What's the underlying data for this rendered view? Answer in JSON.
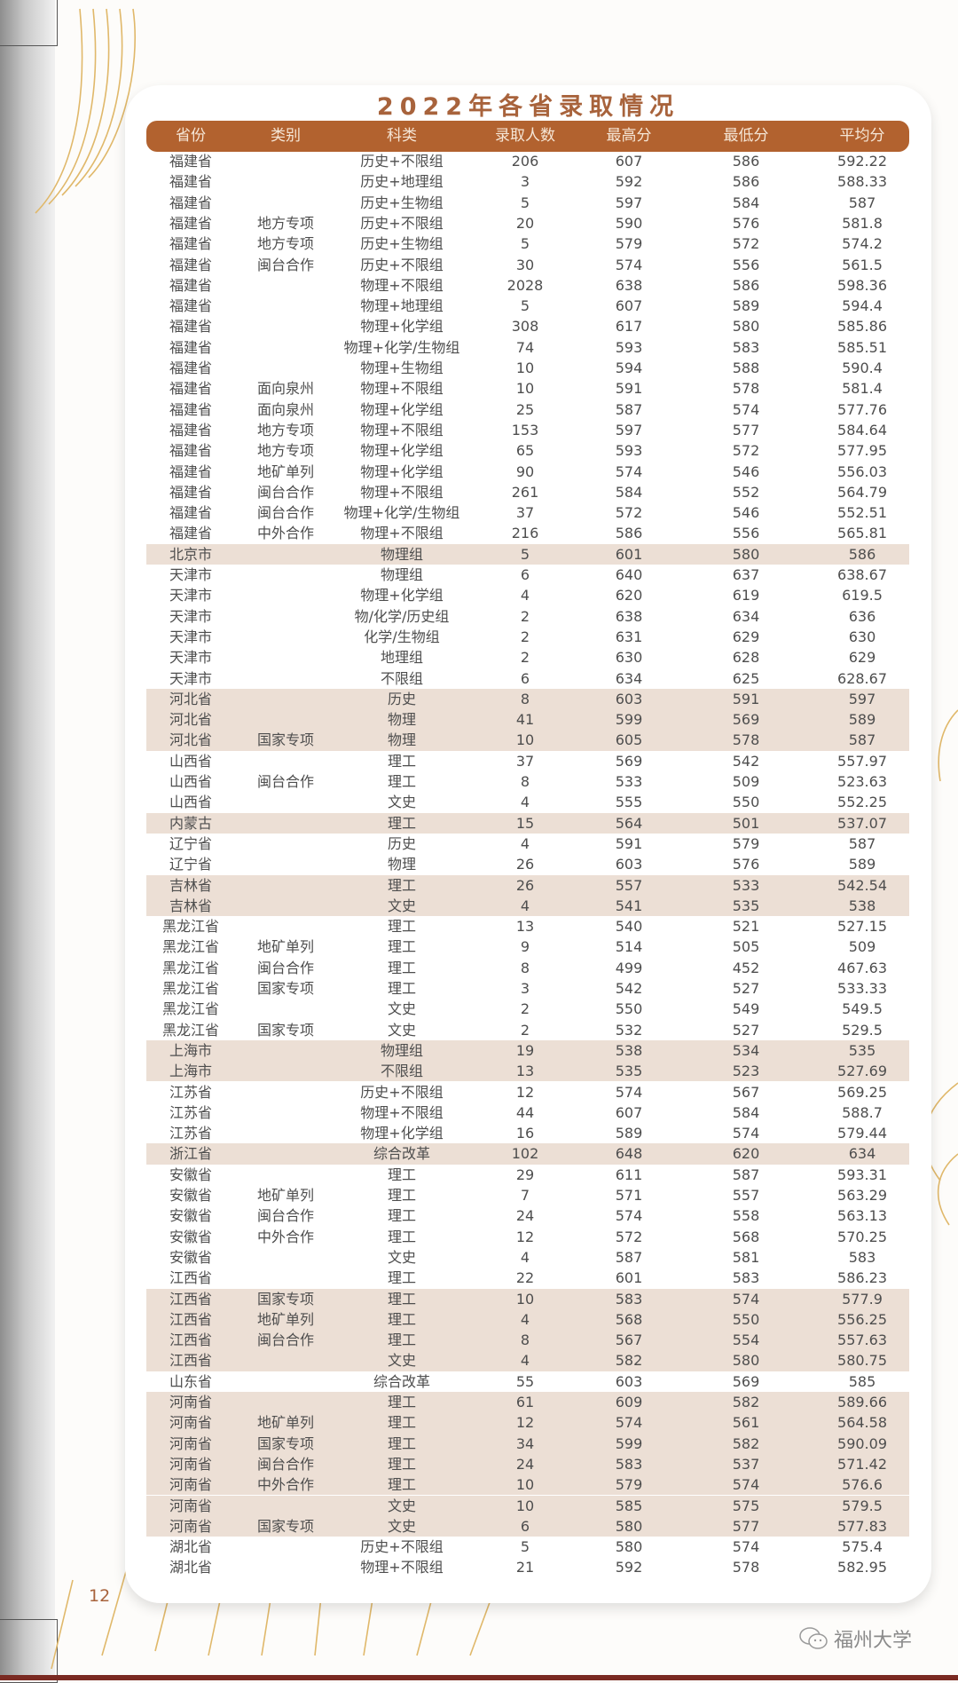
{
  "title": "2022年各省录取情况",
  "colors": {
    "accent": "#b2622f",
    "row_highlight": "#ecdfd5",
    "title": "#a8633c"
  },
  "columns": [
    "省份",
    "类别",
    "科类",
    "录取人数",
    "最高分",
    "最低分",
    "平均分"
  ],
  "rows": [
    {
      "highlight": false,
      "cells": [
        "福建省",
        "",
        "历史+不限组",
        "206",
        "607",
        "586",
        "592.22"
      ]
    },
    {
      "highlight": false,
      "cells": [
        "福建省",
        "",
        "历史+地理组",
        "3",
        "592",
        "586",
        "588.33"
      ]
    },
    {
      "highlight": false,
      "cells": [
        "福建省",
        "",
        "历史+生物组",
        "5",
        "597",
        "584",
        "587"
      ]
    },
    {
      "highlight": false,
      "cells": [
        "福建省",
        "地方专项",
        "历史+不限组",
        "20",
        "590",
        "576",
        "581.8"
      ]
    },
    {
      "highlight": false,
      "cells": [
        "福建省",
        "地方专项",
        "历史+生物组",
        "5",
        "579",
        "572",
        "574.2"
      ]
    },
    {
      "highlight": false,
      "cells": [
        "福建省",
        "闽台合作",
        "历史+不限组",
        "30",
        "574",
        "556",
        "561.5"
      ]
    },
    {
      "highlight": false,
      "cells": [
        "福建省",
        "",
        "物理+不限组",
        "2028",
        "638",
        "586",
        "598.36"
      ]
    },
    {
      "highlight": false,
      "cells": [
        "福建省",
        "",
        "物理+地理组",
        "5",
        "607",
        "589",
        "594.4"
      ]
    },
    {
      "highlight": false,
      "cells": [
        "福建省",
        "",
        "物理+化学组",
        "308",
        "617",
        "580",
        "585.86"
      ]
    },
    {
      "highlight": false,
      "cells": [
        "福建省",
        "",
        "物理+化学/生物组",
        "74",
        "593",
        "583",
        "585.51"
      ]
    },
    {
      "highlight": false,
      "cells": [
        "福建省",
        "",
        "物理+生物组",
        "10",
        "594",
        "588",
        "590.4"
      ]
    },
    {
      "highlight": false,
      "cells": [
        "福建省",
        "面向泉州",
        "物理+不限组",
        "10",
        "591",
        "578",
        "581.4"
      ]
    },
    {
      "highlight": false,
      "cells": [
        "福建省",
        "面向泉州",
        "物理+化学组",
        "25",
        "587",
        "574",
        "577.76"
      ]
    },
    {
      "highlight": false,
      "cells": [
        "福建省",
        "地方专项",
        "物理+不限组",
        "153",
        "597",
        "577",
        "584.64"
      ]
    },
    {
      "highlight": false,
      "cells": [
        "福建省",
        "地方专项",
        "物理+化学组",
        "65",
        "593",
        "572",
        "577.95"
      ]
    },
    {
      "highlight": false,
      "cells": [
        "福建省",
        "地矿单列",
        "物理+化学组",
        "90",
        "574",
        "546",
        "556.03"
      ]
    },
    {
      "highlight": false,
      "cells": [
        "福建省",
        "闽台合作",
        "物理+不限组",
        "261",
        "584",
        "552",
        "564.79"
      ]
    },
    {
      "highlight": false,
      "cells": [
        "福建省",
        "闽台合作",
        "物理+化学/生物组",
        "37",
        "572",
        "546",
        "552.51"
      ]
    },
    {
      "highlight": false,
      "cells": [
        "福建省",
        "中外合作",
        "物理+不限组",
        "216",
        "586",
        "556",
        "565.81"
      ]
    },
    {
      "highlight": true,
      "cells": [
        "北京市",
        "",
        "物理组",
        "5",
        "601",
        "580",
        "586"
      ]
    },
    {
      "highlight": false,
      "cells": [
        "天津市",
        "",
        "物理组",
        "6",
        "640",
        "637",
        "638.67"
      ]
    },
    {
      "highlight": false,
      "cells": [
        "天津市",
        "",
        "物理+化学组",
        "4",
        "620",
        "619",
        "619.5"
      ]
    },
    {
      "highlight": false,
      "cells": [
        "天津市",
        "",
        "物/化学/历史组",
        "2",
        "638",
        "634",
        "636"
      ]
    },
    {
      "highlight": false,
      "cells": [
        "天津市",
        "",
        "化学/生物组",
        "2",
        "631",
        "629",
        "630"
      ]
    },
    {
      "highlight": false,
      "cells": [
        "天津市",
        "",
        "地理组",
        "2",
        "630",
        "628",
        "629"
      ]
    },
    {
      "highlight": false,
      "cells": [
        "天津市",
        "",
        "不限组",
        "6",
        "634",
        "625",
        "628.67"
      ]
    },
    {
      "highlight": true,
      "cells": [
        "河北省",
        "",
        "历史",
        "8",
        "603",
        "591",
        "597"
      ]
    },
    {
      "highlight": true,
      "cells": [
        "河北省",
        "",
        "物理",
        "41",
        "599",
        "569",
        "589"
      ]
    },
    {
      "highlight": true,
      "cells": [
        "河北省",
        "国家专项",
        "物理",
        "10",
        "605",
        "578",
        "587"
      ]
    },
    {
      "highlight": false,
      "cells": [
        "山西省",
        "",
        "理工",
        "37",
        "569",
        "542",
        "557.97"
      ]
    },
    {
      "highlight": false,
      "cells": [
        "山西省",
        "闽台合作",
        "理工",
        "8",
        "533",
        "509",
        "523.63"
      ]
    },
    {
      "highlight": false,
      "cells": [
        "山西省",
        "",
        "文史",
        "4",
        "555",
        "550",
        "552.25"
      ]
    },
    {
      "highlight": true,
      "cells": [
        "内蒙古",
        "",
        "理工",
        "15",
        "564",
        "501",
        "537.07"
      ]
    },
    {
      "highlight": false,
      "cells": [
        "辽宁省",
        "",
        "历史",
        "4",
        "591",
        "579",
        "587"
      ]
    },
    {
      "highlight": false,
      "cells": [
        "辽宁省",
        "",
        "物理",
        "26",
        "603",
        "576",
        "589"
      ]
    },
    {
      "highlight": true,
      "cells": [
        "吉林省",
        "",
        "理工",
        "26",
        "557",
        "533",
        "542.54"
      ]
    },
    {
      "highlight": true,
      "cells": [
        "吉林省",
        "",
        "文史",
        "4",
        "541",
        "535",
        "538"
      ]
    },
    {
      "highlight": false,
      "cells": [
        "黑龙江省",
        "",
        "理工",
        "13",
        "540",
        "521",
        "527.15"
      ]
    },
    {
      "highlight": false,
      "cells": [
        "黑龙江省",
        "地矿单列",
        "理工",
        "9",
        "514",
        "505",
        "509"
      ]
    },
    {
      "highlight": false,
      "cells": [
        "黑龙江省",
        "闽台合作",
        "理工",
        "8",
        "499",
        "452",
        "467.63"
      ]
    },
    {
      "highlight": false,
      "cells": [
        "黑龙江省",
        "国家专项",
        "理工",
        "3",
        "542",
        "527",
        "533.33"
      ]
    },
    {
      "highlight": false,
      "cells": [
        "黑龙江省",
        "",
        "文史",
        "2",
        "550",
        "549",
        "549.5"
      ]
    },
    {
      "highlight": false,
      "cells": [
        "黑龙江省",
        "国家专项",
        "文史",
        "2",
        "532",
        "527",
        "529.5"
      ]
    },
    {
      "highlight": true,
      "cells": [
        "上海市",
        "",
        "物理组",
        "19",
        "538",
        "534",
        "535"
      ]
    },
    {
      "highlight": true,
      "cells": [
        "上海市",
        "",
        "不限组",
        "13",
        "535",
        "523",
        "527.69"
      ]
    },
    {
      "highlight": false,
      "cells": [
        "江苏省",
        "",
        "历史+不限组",
        "12",
        "574",
        "567",
        "569.25"
      ]
    },
    {
      "highlight": false,
      "cells": [
        "江苏省",
        "",
        "物理+不限组",
        "44",
        "607",
        "584",
        "588.7"
      ]
    },
    {
      "highlight": false,
      "cells": [
        "江苏省",
        "",
        "物理+化学组",
        "16",
        "589",
        "574",
        "579.44"
      ]
    },
    {
      "highlight": true,
      "cells": [
        "浙江省",
        "",
        "综合改革",
        "102",
        "648",
        "620",
        "634"
      ]
    },
    {
      "highlight": false,
      "cells": [
        "安徽省",
        "",
        "理工",
        "29",
        "611",
        "587",
        "593.31"
      ]
    },
    {
      "highlight": false,
      "cells": [
        "安徽省",
        "地矿单列",
        "理工",
        "7",
        "571",
        "557",
        "563.29"
      ]
    },
    {
      "highlight": false,
      "cells": [
        "安徽省",
        "闽台合作",
        "理工",
        "24",
        "574",
        "558",
        "563.13"
      ]
    },
    {
      "highlight": false,
      "cells": [
        "安徽省",
        "中外合作",
        "理工",
        "12",
        "572",
        "568",
        "570.25"
      ]
    },
    {
      "highlight": false,
      "cells": [
        "安徽省",
        "",
        "文史",
        "4",
        "587",
        "581",
        "583"
      ]
    },
    {
      "highlight": false,
      "cells": [
        "江西省",
        "",
        "理工",
        "22",
        "601",
        "583",
        "586.23"
      ]
    },
    {
      "highlight": true,
      "cells": [
        "江西省",
        "国家专项",
        "理工",
        "10",
        "583",
        "574",
        "577.9"
      ]
    },
    {
      "highlight": true,
      "cells": [
        "江西省",
        "地矿单列",
        "理工",
        "4",
        "568",
        "550",
        "556.25"
      ]
    },
    {
      "highlight": true,
      "cells": [
        "江西省",
        "闽台合作",
        "理工",
        "8",
        "567",
        "554",
        "557.63"
      ]
    },
    {
      "highlight": true,
      "cells": [
        "江西省",
        "",
        "文史",
        "4",
        "582",
        "580",
        "580.75"
      ]
    },
    {
      "highlight": false,
      "cells": [
        "山东省",
        "",
        "综合改革",
        "55",
        "603",
        "569",
        "585"
      ]
    },
    {
      "highlight": true,
      "cells": [
        "河南省",
        "",
        "理工",
        "61",
        "609",
        "582",
        "589.66"
      ]
    },
    {
      "highlight": true,
      "cells": [
        "河南省",
        "地矿单列",
        "理工",
        "12",
        "574",
        "561",
        "564.58"
      ]
    },
    {
      "highlight": true,
      "cells": [
        "河南省",
        "国家专项",
        "理工",
        "34",
        "599",
        "582",
        "590.09"
      ]
    },
    {
      "highlight": true,
      "cells": [
        "河南省",
        "闽台合作",
        "理工",
        "24",
        "583",
        "537",
        "571.42"
      ]
    },
    {
      "highlight": true,
      "cells": [
        "河南省",
        "中外合作",
        "理工",
        "10",
        "579",
        "574",
        "576.6"
      ]
    },
    {
      "highlight": true,
      "cells": [
        "河南省",
        "",
        "文史",
        "10",
        "585",
        "575",
        "579.5"
      ]
    },
    {
      "highlight": true,
      "cells": [
        "河南省",
        "国家专项",
        "文史",
        "6",
        "580",
        "577",
        "577.83"
      ]
    },
    {
      "highlight": false,
      "cells": [
        "湖北省",
        "",
        "历史+不限组",
        "5",
        "580",
        "574",
        "575.4"
      ]
    },
    {
      "highlight": false,
      "cells": [
        "湖北省",
        "",
        "物理+不限组",
        "21",
        "592",
        "578",
        "582.95"
      ]
    }
  ],
  "footer": {
    "page_number": "12",
    "brand": "福州大学",
    "brand_icon": "wechat-icon"
  }
}
